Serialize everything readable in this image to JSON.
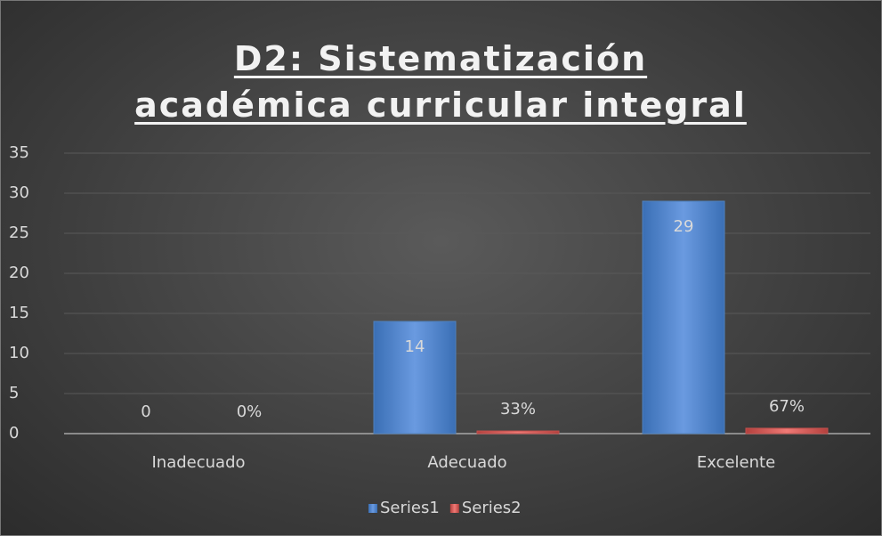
{
  "chart_data": {
    "type": "bar",
    "title": "D2: Sistematización académica curricular integral",
    "categories": [
      "Inadecuado",
      "Adecuado",
      "Excelente"
    ],
    "series": [
      {
        "name": "Series1",
        "color": "#4f81bd",
        "values": [
          0,
          14,
          29
        ]
      },
      {
        "name": "Series2",
        "color": "#c0504d",
        "values": [
          0,
          0.33,
          0.67
        ],
        "value_labels": [
          "0%",
          "33%",
          "67%"
        ]
      }
    ],
    "ylim": [
      0,
      35
    ],
    "yticks": [
      0,
      5,
      10,
      15,
      20,
      25,
      30,
      35
    ],
    "grid": true,
    "legend": "bottom"
  }
}
